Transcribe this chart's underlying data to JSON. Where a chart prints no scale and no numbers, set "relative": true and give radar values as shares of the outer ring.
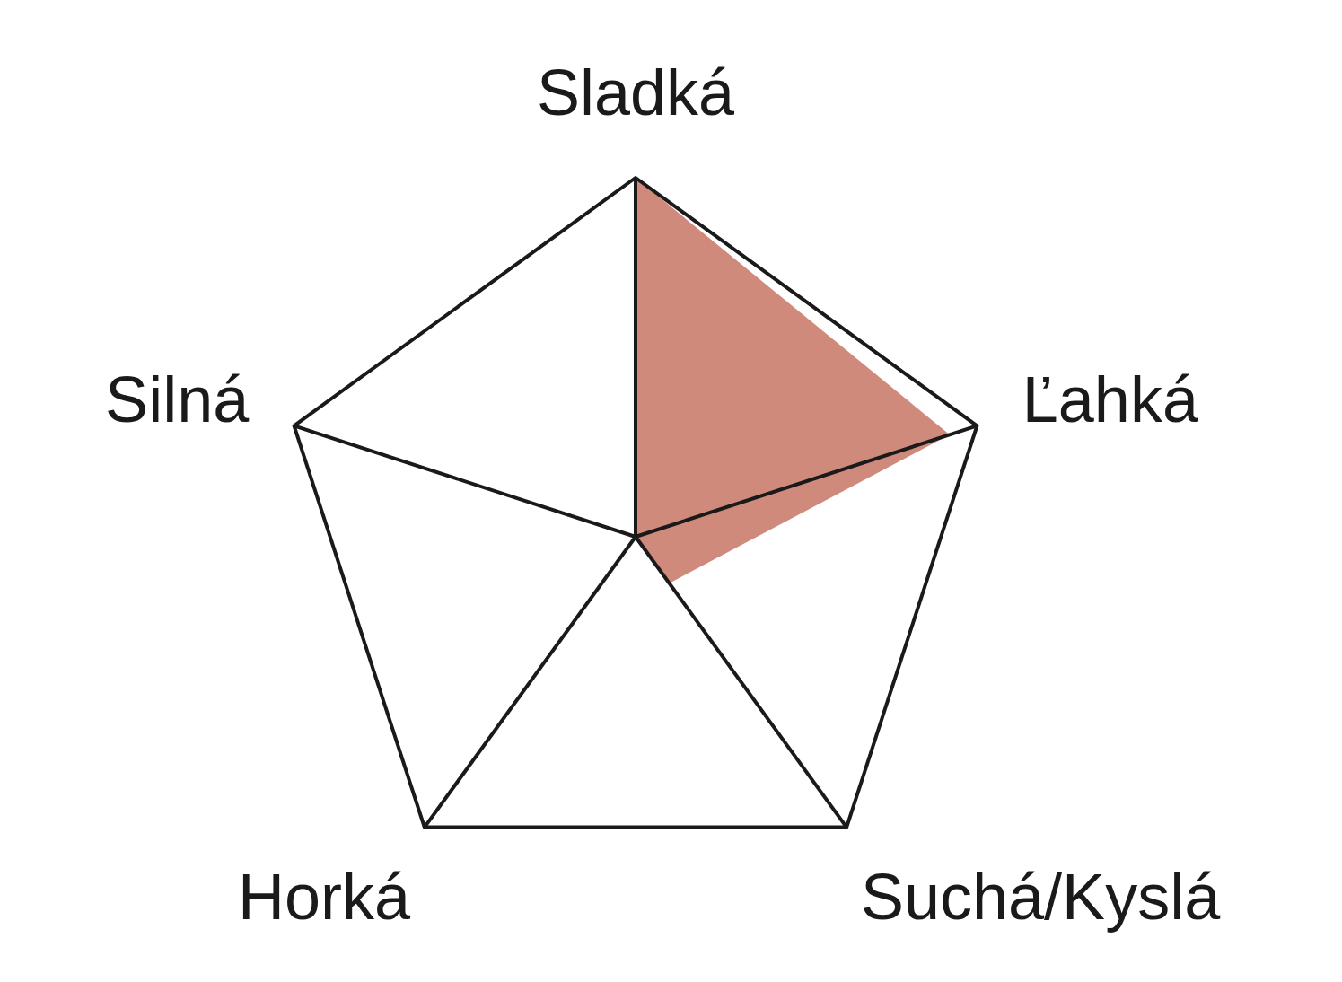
{
  "chart_data": {
    "type": "radar",
    "relative": true,
    "categories": [
      "Sladká",
      "Ľahká",
      "Suchá/Kyslá",
      "Horká",
      "Silná"
    ],
    "series": [
      {
        "color": "#cf8a7c",
        "values": [
          1,
          0.92,
          0.16,
          0,
          0
        ]
      }
    ],
    "grid": true
  }
}
